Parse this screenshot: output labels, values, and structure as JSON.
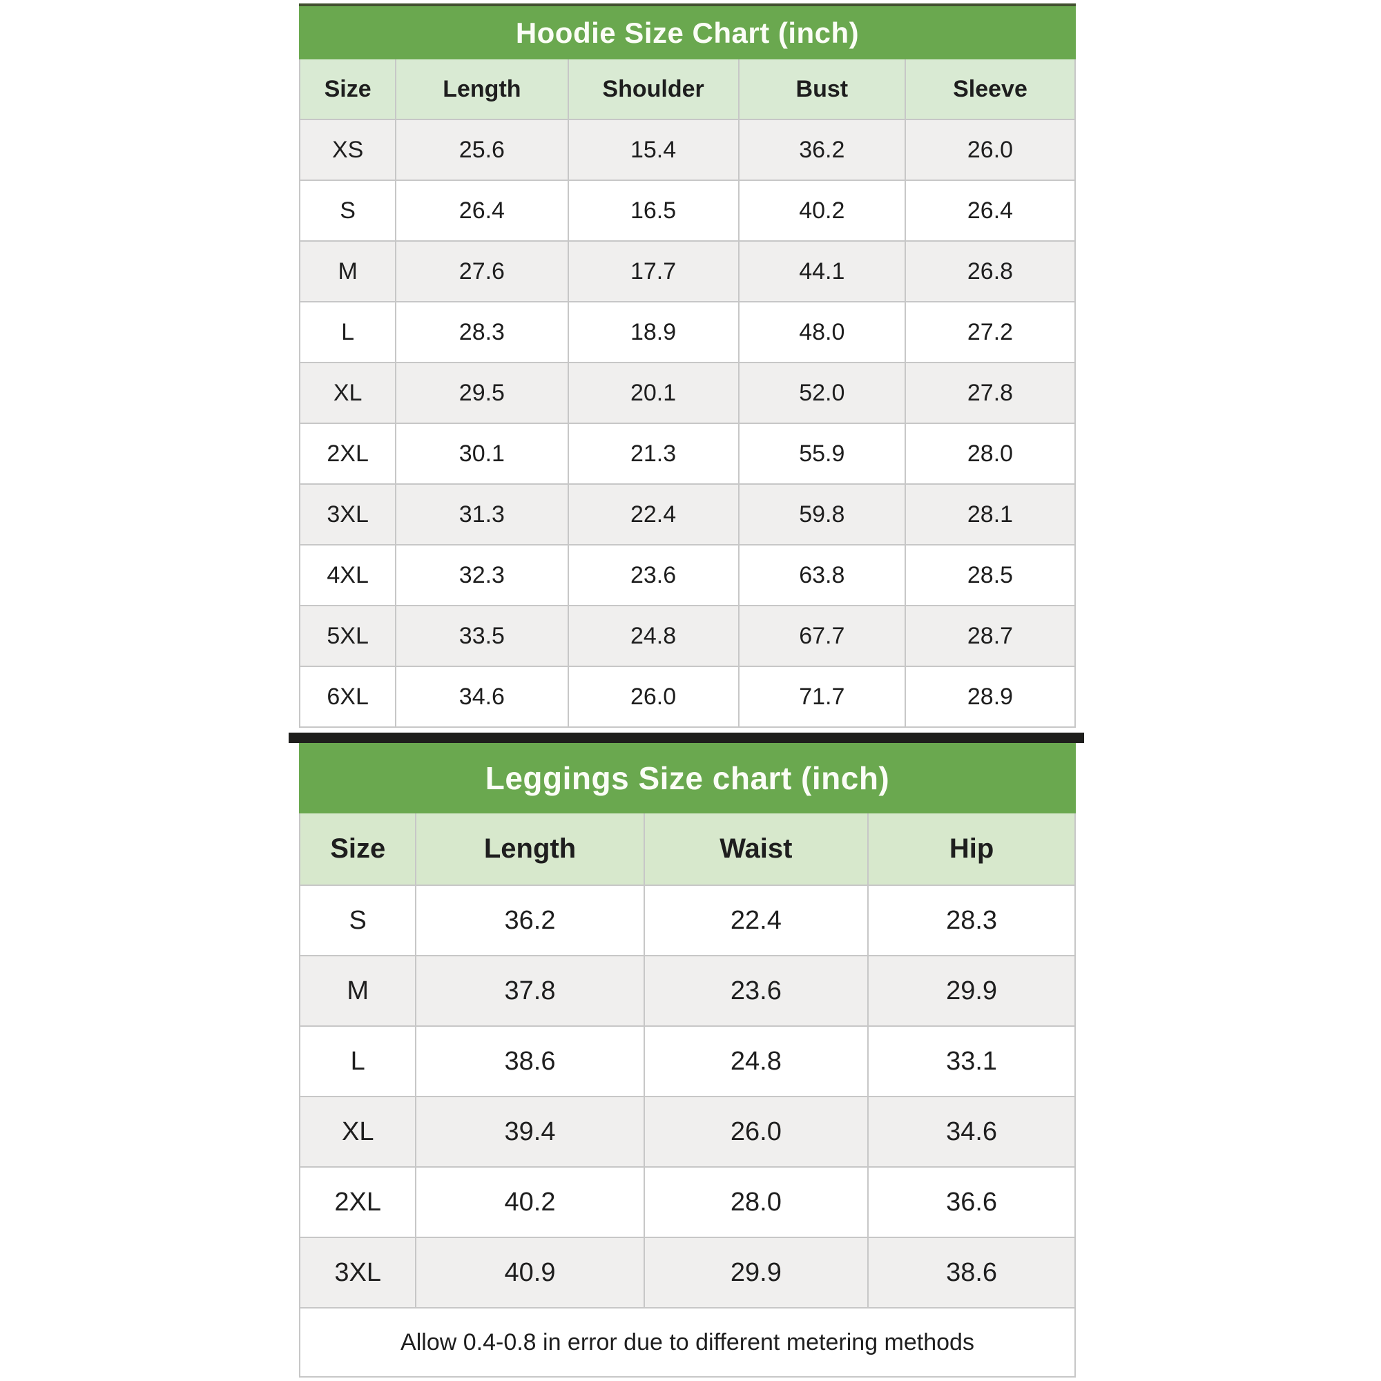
{
  "hoodie_table": {
    "title": "Hoodie Size Chart (inch)",
    "columns": [
      "Size",
      "Length",
      "Shoulder",
      "Bust",
      "Sleeve"
    ],
    "rows": [
      [
        "XS",
        "25.6",
        "15.4",
        "36.2",
        "26.0"
      ],
      [
        "S",
        "26.4",
        "16.5",
        "40.2",
        "26.4"
      ],
      [
        "M",
        "27.6",
        "17.7",
        "44.1",
        "26.8"
      ],
      [
        "L",
        "28.3",
        "18.9",
        "48.0",
        "27.2"
      ],
      [
        "XL",
        "29.5",
        "20.1",
        "52.0",
        "27.8"
      ],
      [
        "2XL",
        "30.1",
        "21.3",
        "55.9",
        "28.0"
      ],
      [
        "3XL",
        "31.3",
        "22.4",
        "59.8",
        "28.1"
      ],
      [
        "4XL",
        "32.3",
        "23.6",
        "63.8",
        "28.5"
      ],
      [
        "5XL",
        "33.5",
        "24.8",
        "67.7",
        "28.7"
      ],
      [
        "6XL",
        "34.6",
        "26.0",
        "71.7",
        "28.9"
      ]
    ]
  },
  "leggings_table": {
    "title": "Leggings Size chart (inch)",
    "columns": [
      "Size",
      "Length",
      "Waist",
      "Hip"
    ],
    "rows": [
      [
        "S",
        "36.2",
        "22.4",
        "28.3"
      ],
      [
        "M",
        "37.8",
        "23.6",
        "29.9"
      ],
      [
        "L",
        "38.6",
        "24.8",
        "33.1"
      ],
      [
        "XL",
        "39.4",
        "26.0",
        "34.6"
      ],
      [
        "2XL",
        "40.2",
        "28.0",
        "36.6"
      ],
      [
        "3XL",
        "40.9",
        "29.9",
        "38.6"
      ]
    ]
  },
  "footer_note": "Allow 0.4-0.8 in error due to different metering methods",
  "colors": {
    "title_bar_green": "#6aa84f",
    "header_light_green": "#d9ead3",
    "row_stripe_gray": "#f0efee",
    "divider_black": "#1e1e1c",
    "border_gray": "#c7c7c7",
    "title_text": "#fbfdf6"
  }
}
